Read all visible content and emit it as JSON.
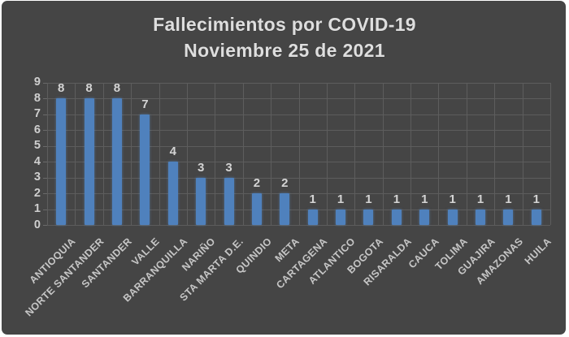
{
  "chart_data": {
    "type": "bar",
    "title": "Fallecimientos por COVID-19",
    "subtitle": "Noviembre 25 de 2021",
    "categories": [
      "ANTIOQUIA",
      "NORTE SANTANDER",
      "SANTANDER",
      "VALLE",
      "BARRANQUILLA",
      "NARIÑO",
      "STA MARTA D.E.",
      "QUINDIO",
      "META",
      "CARTAGENA",
      "ATLANTICO",
      "BOGOTA",
      "RISARALDA",
      "CAUCA",
      "TOLIMA",
      "GUAJIRA",
      "AMAZONAS",
      "HUILA"
    ],
    "values": [
      8,
      8,
      8,
      7,
      4,
      3,
      3,
      2,
      2,
      1,
      1,
      1,
      1,
      1,
      1,
      1,
      1,
      1
    ],
    "data_labels": [
      8,
      8,
      8,
      7,
      4,
      3,
      3,
      2,
      2,
      1,
      1,
      1,
      1,
      1,
      1,
      1,
      1,
      1
    ],
    "xlabel": "",
    "ylabel": "",
    "ylim": [
      0,
      9
    ],
    "yticks": [
      0,
      1,
      2,
      3,
      4,
      5,
      6,
      7,
      8,
      9
    ],
    "grid": "on",
    "legend": "none",
    "colors": {
      "bar": "#4f81bd",
      "background": "#454545",
      "gridline": "#5d5d5d",
      "title_text": "#dedede",
      "axis_text": "#cfcfcf",
      "category_text": "#c6c6c6",
      "value_label_text": "#d4d4d4",
      "page_border": "#ffffff"
    }
  }
}
